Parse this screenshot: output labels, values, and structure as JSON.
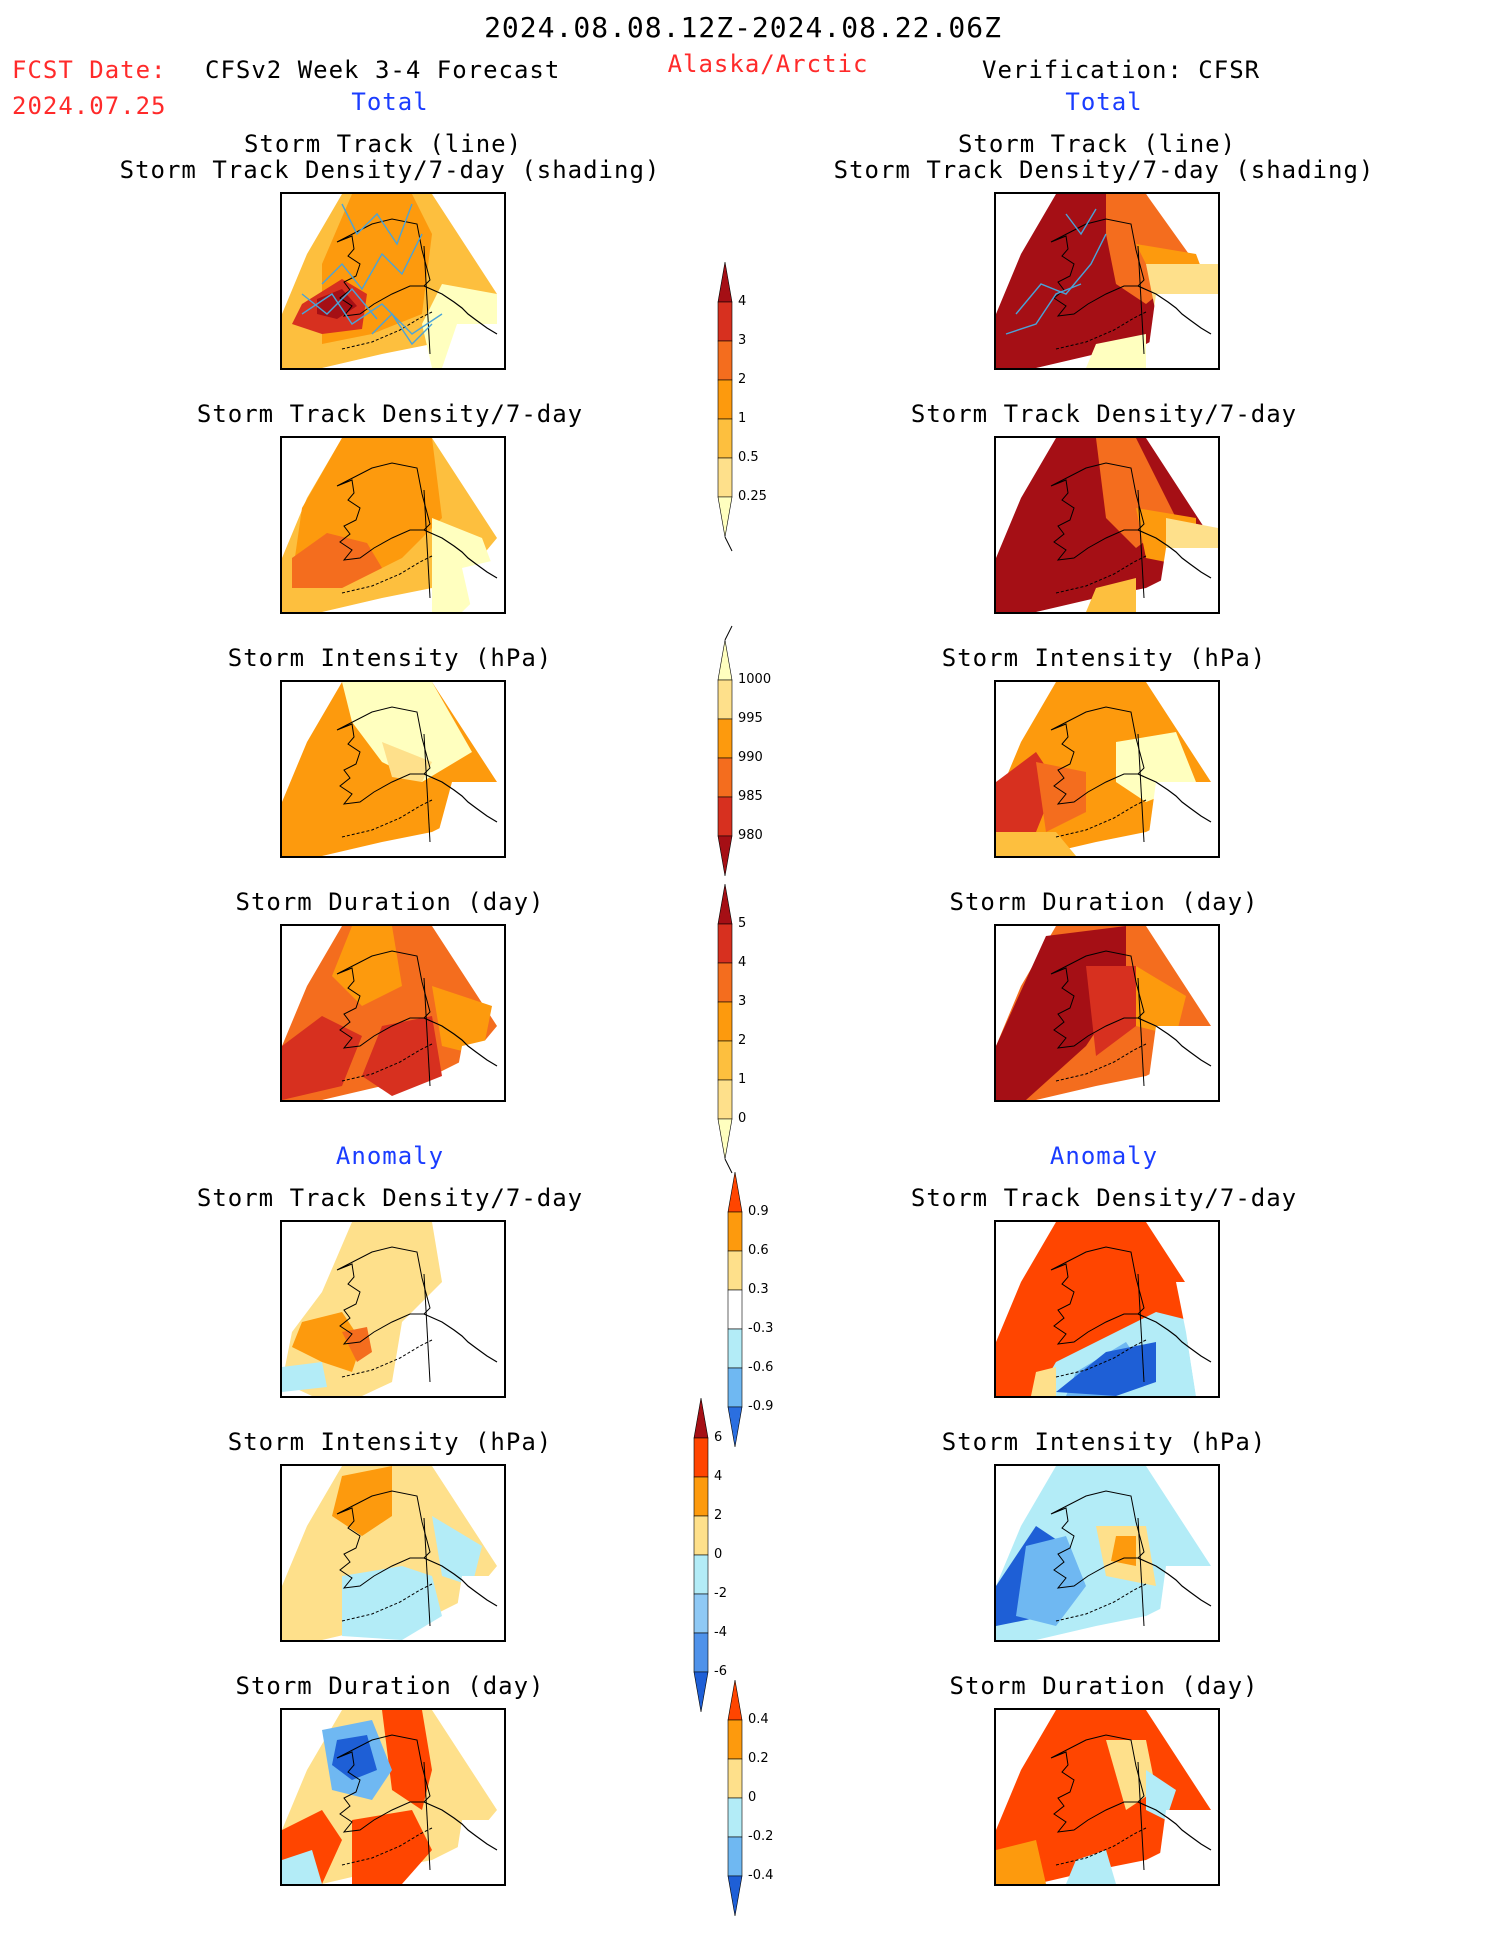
{
  "header": {
    "date_range": "2024.08.08.12Z-2024.08.22.06Z",
    "fcst_label": "FCST Date:",
    "fcst_date": "2024.07.25",
    "forecast_title": "CFSv2 Week 3-4 Forecast",
    "region": "Alaska/Arctic",
    "verification": "Verification: CFSR"
  },
  "left": {
    "total": "Total",
    "anomaly": "Anomaly",
    "panels": [
      {
        "title_1": "Storm Track (line)",
        "title_2": "Storm Track Density/7-day (shading)"
      },
      {
        "title_1": "Storm Track Density/7-day"
      },
      {
        "title_1": "Storm Intensity (hPa)"
      },
      {
        "title_1": "Storm Duration (day)"
      },
      {
        "title_1": "Storm Track Density/7-day"
      },
      {
        "title_1": "Storm Intensity (hPa)"
      },
      {
        "title_1": "Storm Duration (day)"
      }
    ]
  },
  "right": {
    "total": "Total",
    "anomaly": "Anomaly",
    "panels": [
      {
        "title_1": "Storm Track (line)",
        "title_2": "Storm Track Density/7-day (shading)"
      },
      {
        "title_1": "Storm Track Density/7-day"
      },
      {
        "title_1": "Storm Intensity (hPa)"
      },
      {
        "title_1": "Storm Duration (day)"
      },
      {
        "title_1": "Storm Track Density/7-day"
      },
      {
        "title_1": "Storm Intensity (hPa)"
      },
      {
        "title_1": "Storm Duration (day)"
      }
    ]
  },
  "colorbars": [
    {
      "name": "density",
      "labels": [
        "4",
        "3",
        "2",
        "1",
        "0.5",
        "0.25"
      ],
      "colors": [
        "#a50f15",
        "#d7301f",
        "#f46d1e",
        "#fd9a0d",
        "#fdbf3e",
        "#fee08b",
        "#ffffbf"
      ]
    },
    {
      "name": "intensity",
      "labels": [
        "1000",
        "995",
        "990",
        "985",
        "980"
      ],
      "colors": [
        "#ffffbf",
        "#fee08b",
        "#fd9a0d",
        "#f46d1e",
        "#d7301f",
        "#a50f15"
      ]
    },
    {
      "name": "duration",
      "labels": [
        "5",
        "4",
        "3",
        "2",
        "1",
        "0"
      ],
      "colors": [
        "#a50f15",
        "#d7301f",
        "#f46d1e",
        "#fd9a0d",
        "#fdbf3e",
        "#fee08b",
        "#ffffbf"
      ]
    },
    {
      "name": "density_anom",
      "labels": [
        "0.9",
        "0.6",
        "0.3",
        "-0.3",
        "-0.6",
        "-0.9"
      ],
      "colors": [
        "#ff4500",
        "#fd9a0d",
        "#fee08b",
        "#ffffff",
        "#b3ecf7",
        "#6fb8f2",
        "#2b6fe0"
      ]
    },
    {
      "name": "intensity_anom",
      "labels": [
        "6",
        "4",
        "2",
        "0",
        "-2",
        "-4",
        "-6"
      ],
      "colors": [
        "#a50f15",
        "#ff4500",
        "#fd9a0d",
        "#fee08b",
        "#b3ecf7",
        "#8fc9f5",
        "#4f92ea",
        "#1e5fd6"
      ]
    },
    {
      "name": "duration_anom",
      "labels": [
        "0.4",
        "0.2",
        "0",
        "-0.2",
        "-0.4"
      ],
      "colors": [
        "#ff4500",
        "#fd9a0d",
        "#fee08b",
        "#b3ecf7",
        "#6fb8f2",
        "#1e5fd6"
      ]
    }
  ],
  "colors": {
    "title_red": "#ff2a2a",
    "title_blue": "#1a3cff",
    "track_line": "#4aa3d8"
  }
}
